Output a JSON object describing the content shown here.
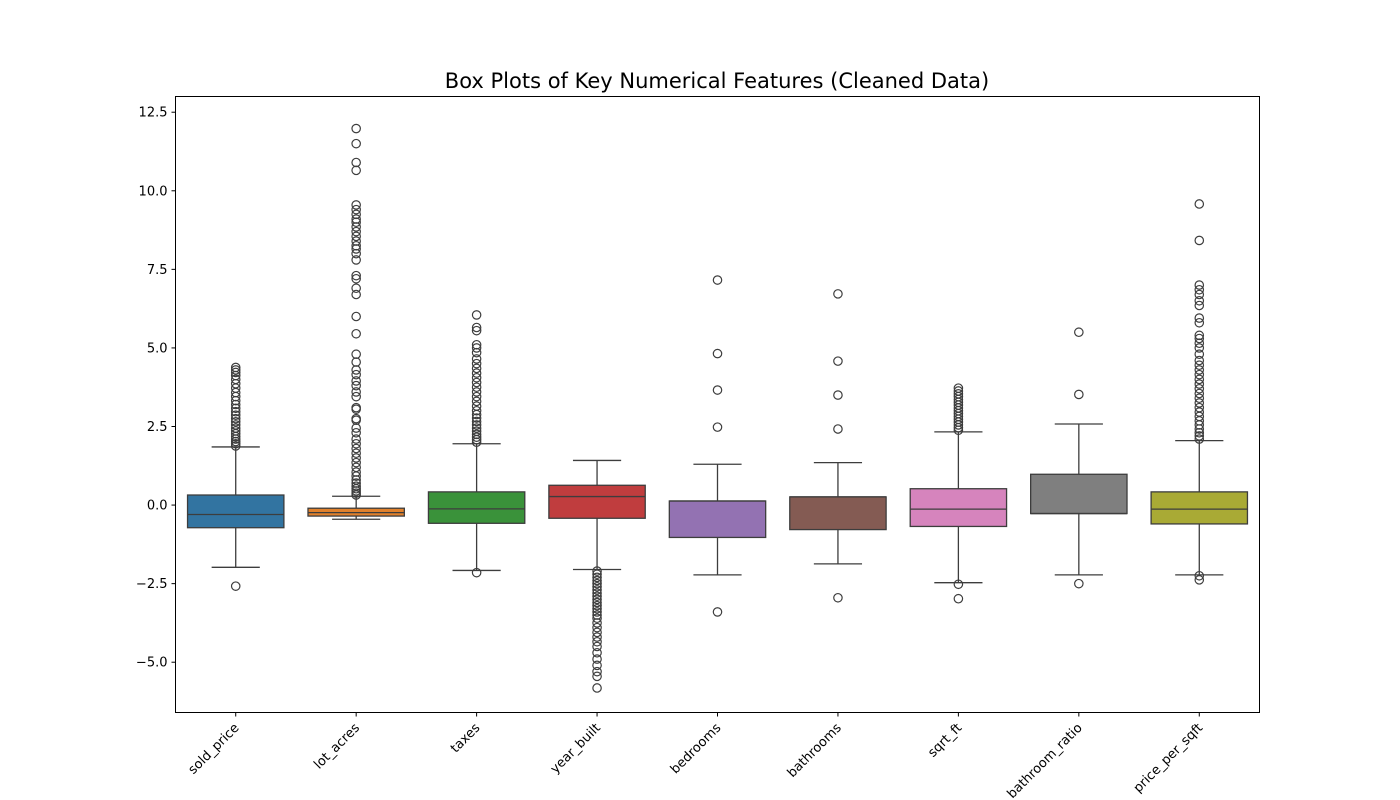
{
  "chart_data": {
    "type": "box",
    "title": "Box Plots of Key Numerical Features (Cleaned Data)",
    "xlabel": "",
    "ylabel": "",
    "ylim": [
      -6.6,
      13.0
    ],
    "yticks": [
      -5.0,
      -2.5,
      0.0,
      2.5,
      5.0,
      7.5,
      10.0,
      12.5
    ],
    "ytick_labels": [
      "−5.0",
      "−2.5",
      "0.0",
      "2.5",
      "5.0",
      "7.5",
      "10.0",
      "12.5"
    ],
    "grid": false,
    "legend": "none",
    "categories": [
      "sold_price",
      "lot_acres",
      "taxes",
      "year_built",
      "bedrooms",
      "bathrooms",
      "sqrt_ft",
      "bathroom_ratio",
      "price_per_sqft"
    ],
    "boxes": [
      {
        "category": "sold_price",
        "color": "#3274a1",
        "whisker_low": -1.98,
        "q1": -0.72,
        "median": -0.3,
        "q3": 0.32,
        "whisker_high": 1.85,
        "outliers": [
          -2.58,
          1.88,
          1.95,
          2.02,
          2.1,
          2.18,
          2.27,
          2.36,
          2.45,
          2.55,
          2.65,
          2.75,
          2.86,
          2.97,
          3.08,
          3.2,
          3.32,
          3.45,
          3.58,
          3.72,
          3.86,
          4.0,
          4.12,
          4.22,
          4.3,
          4.38
        ]
      },
      {
        "category": "lot_acres",
        "color": "#e1812c",
        "whisker_low": -0.45,
        "q1": -0.35,
        "median": -0.24,
        "q3": -0.1,
        "whisker_high": 0.28,
        "outliers": [
          0.32,
          0.38,
          0.45,
          0.52,
          0.6,
          0.7,
          0.8,
          0.92,
          1.05,
          1.2,
          1.35,
          1.5,
          1.65,
          1.8,
          1.95,
          2.1,
          2.3,
          2.45,
          2.7,
          2.75,
          3.05,
          3.1,
          3.45,
          3.6,
          3.8,
          3.95,
          4.15,
          4.3,
          4.55,
          4.8,
          5.45,
          6.0,
          6.7,
          6.9,
          7.2,
          7.3,
          7.8,
          8.0,
          8.15,
          8.25,
          8.4,
          8.55,
          8.7,
          8.85,
          9.0,
          9.1,
          9.25,
          9.4,
          9.55,
          10.65,
          10.9,
          11.5,
          11.98
        ]
      },
      {
        "category": "taxes",
        "color": "#3a923a",
        "whisker_low": -2.08,
        "q1": -0.58,
        "median": -0.12,
        "q3": 0.42,
        "whisker_high": 1.95,
        "outliers": [
          -2.15,
          2.0,
          2.08,
          2.16,
          2.25,
          2.35,
          2.45,
          2.55,
          2.66,
          2.77,
          2.88,
          3.0,
          3.15,
          3.3,
          3.45,
          3.6,
          3.75,
          3.9,
          4.05,
          4.2,
          4.35,
          4.5,
          4.65,
          4.85,
          5.0,
          5.1,
          5.55,
          5.65,
          6.05
        ]
      },
      {
        "category": "year_built",
        "color": "#c03d3e",
        "whisker_low": -2.05,
        "q1": -0.42,
        "median": 0.27,
        "q3": 0.63,
        "whisker_high": 1.42,
        "outliers": [
          -2.1,
          -2.2,
          -2.3,
          -2.4,
          -2.5,
          -2.6,
          -2.7,
          -2.8,
          -2.9,
          -3.0,
          -3.1,
          -3.2,
          -3.3,
          -3.4,
          -3.5,
          -3.6,
          -3.75,
          -3.9,
          -4.05,
          -4.2,
          -4.35,
          -4.5,
          -4.7,
          -4.9,
          -5.1,
          -5.3,
          -5.45,
          -5.82
        ]
      },
      {
        "category": "bedrooms",
        "color": "#9372b2",
        "whisker_low": -2.22,
        "q1": -1.03,
        "median": 0.13,
        "q3": 0.13,
        "whisker_high": 1.3,
        "outliers": [
          -3.4,
          2.48,
          3.66,
          4.82,
          7.16
        ]
      },
      {
        "category": "bathrooms",
        "color": "#845b53",
        "whisker_low": -1.87,
        "q1": -0.78,
        "median": 0.26,
        "q3": 0.26,
        "whisker_high": 1.35,
        "outliers": [
          -2.95,
          2.42,
          3.5,
          4.58,
          6.72
        ]
      },
      {
        "category": "sqrt_ft",
        "color": "#d684bd",
        "whisker_low": -2.47,
        "q1": -0.68,
        "median": -0.13,
        "q3": 0.52,
        "whisker_high": 2.33,
        "outliers": [
          -2.52,
          -2.98,
          2.38,
          2.46,
          2.55,
          2.64,
          2.73,
          2.82,
          2.91,
          3.0,
          3.09,
          3.18,
          3.27,
          3.36,
          3.45,
          3.54,
          3.63,
          3.72
        ]
      },
      {
        "category": "bathroom_ratio",
        "color": "#7f7f7f",
        "whisker_low": -2.22,
        "q1": -0.27,
        "median": -0.27,
        "q3": 0.98,
        "whisker_high": 2.58,
        "outliers": [
          -2.5,
          3.52,
          5.5
        ]
      },
      {
        "category": "price_per_sqft",
        "color": "#a9aa35",
        "whisker_low": -2.22,
        "q1": -0.6,
        "median": -0.13,
        "q3": 0.42,
        "whisker_high": 2.05,
        "outliers": [
          -2.25,
          -2.38,
          2.1,
          2.2,
          2.3,
          2.42,
          2.55,
          2.68,
          2.82,
          2.96,
          3.1,
          3.25,
          3.4,
          3.55,
          3.7,
          3.85,
          4.0,
          4.15,
          4.3,
          4.45,
          4.6,
          4.8,
          5.0,
          5.15,
          5.3,
          5.4,
          5.8,
          5.95,
          6.35,
          6.5,
          6.7,
          6.85,
          7.0,
          8.42,
          9.58
        ]
      }
    ]
  }
}
